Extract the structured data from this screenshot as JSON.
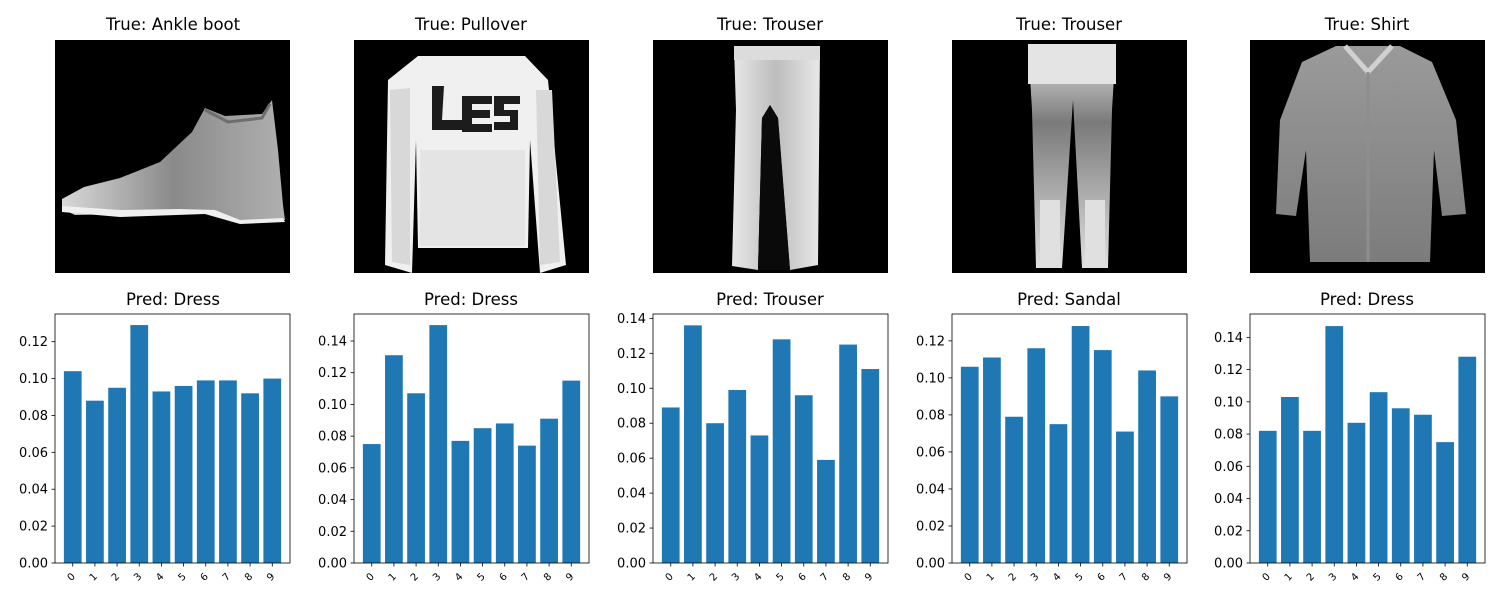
{
  "figure": {
    "bar_color": "#1f77b4",
    "image_background": "#000000",
    "axis_color": "#000000"
  },
  "panels": [
    {
      "image": {
        "title": "True: Ankle boot",
        "content": "fashion-mnist-ankle-boot"
      },
      "chart": {
        "title": "Pred: Dress",
        "ylim": [
          0,
          0.135
        ],
        "yticks": [
          "0.00",
          "0.02",
          "0.04",
          "0.06",
          "0.08",
          "0.10",
          "0.12"
        ]
      }
    },
    {
      "image": {
        "title": "True: Pullover",
        "content": "fashion-mnist-pullover"
      },
      "chart": {
        "title": "Pred: Dress",
        "ylim": [
          0,
          0.157
        ],
        "yticks": [
          "0.00",
          "0.02",
          "0.04",
          "0.06",
          "0.08",
          "0.10",
          "0.12",
          "0.14"
        ]
      }
    },
    {
      "image": {
        "title": "True: Trouser",
        "content": "fashion-mnist-trouser"
      },
      "chart": {
        "title": "Pred: Trouser",
        "ylim": [
          0,
          0.1425
        ],
        "yticks": [
          "0.00",
          "0.02",
          "0.04",
          "0.06",
          "0.08",
          "0.10",
          "0.12",
          "0.14"
        ]
      }
    },
    {
      "image": {
        "title": "True: Trouser",
        "content": "fashion-mnist-trouser-2"
      },
      "chart": {
        "title": "Pred: Sandal",
        "ylim": [
          0,
          0.1345
        ],
        "yticks": [
          "0.00",
          "0.02",
          "0.04",
          "0.06",
          "0.08",
          "0.10",
          "0.12"
        ]
      }
    },
    {
      "image": {
        "title": "True: Shirt",
        "content": "fashion-mnist-shirt"
      },
      "chart": {
        "title": "Pred: Dress",
        "ylim": [
          0,
          0.1545
        ],
        "yticks": [
          "0.00",
          "0.02",
          "0.04",
          "0.06",
          "0.08",
          "0.10",
          "0.12",
          "0.14"
        ]
      }
    }
  ],
  "chart_data": [
    {
      "type": "bar",
      "title": "Pred: Dress",
      "xlabel": "",
      "ylabel": "",
      "categories": [
        "0",
        "1",
        "2",
        "3",
        "4",
        "5",
        "6",
        "7",
        "8",
        "9"
      ],
      "values": [
        0.104,
        0.088,
        0.095,
        0.129,
        0.093,
        0.096,
        0.099,
        0.099,
        0.092,
        0.1
      ],
      "ylim": [
        0,
        0.135
      ]
    },
    {
      "type": "bar",
      "title": "Pred: Dress",
      "xlabel": "",
      "ylabel": "",
      "categories": [
        "0",
        "1",
        "2",
        "3",
        "4",
        "5",
        "6",
        "7",
        "8",
        "9"
      ],
      "values": [
        0.075,
        0.131,
        0.107,
        0.15,
        0.077,
        0.085,
        0.088,
        0.074,
        0.091,
        0.115
      ],
      "ylim": [
        0,
        0.157
      ]
    },
    {
      "type": "bar",
      "title": "Pred: Trouser",
      "xlabel": "",
      "ylabel": "",
      "categories": [
        "0",
        "1",
        "2",
        "3",
        "4",
        "5",
        "6",
        "7",
        "8",
        "9"
      ],
      "values": [
        0.089,
        0.136,
        0.08,
        0.099,
        0.073,
        0.128,
        0.096,
        0.059,
        0.125,
        0.111
      ],
      "ylim": [
        0,
        0.1425
      ]
    },
    {
      "type": "bar",
      "title": "Pred: Sandal",
      "xlabel": "",
      "ylabel": "",
      "categories": [
        "0",
        "1",
        "2",
        "3",
        "4",
        "5",
        "6",
        "7",
        "8",
        "9"
      ],
      "values": [
        0.106,
        0.111,
        0.079,
        0.116,
        0.075,
        0.128,
        0.115,
        0.071,
        0.104,
        0.09
      ],
      "ylim": [
        0,
        0.1345
      ]
    },
    {
      "type": "bar",
      "title": "Pred: Dress",
      "xlabel": "",
      "ylabel": "",
      "categories": [
        "0",
        "1",
        "2",
        "3",
        "4",
        "5",
        "6",
        "7",
        "8",
        "9"
      ],
      "values": [
        0.082,
        0.103,
        0.082,
        0.147,
        0.087,
        0.106,
        0.096,
        0.092,
        0.075,
        0.128
      ],
      "ylim": [
        0,
        0.1545
      ]
    }
  ]
}
